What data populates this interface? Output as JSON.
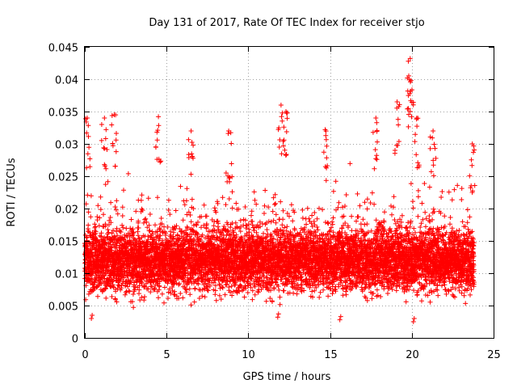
{
  "chart_data": {
    "type": "scatter",
    "title": "Day 131 of 2017, Rate Of TEC Index for receiver stjo",
    "xlabel": "GPS time / hours",
    "ylabel": "ROTI / TECUs",
    "xlim": [
      0,
      25
    ],
    "ylim": [
      0,
      0.045
    ],
    "xticks": [
      "0",
      "5",
      "10",
      "15",
      "20",
      "25"
    ],
    "yticks": [
      "0",
      "0.005",
      "0.01",
      "0.015",
      "0.02",
      "0.025",
      "0.03",
      "0.035",
      "0.04",
      "0.045"
    ],
    "grid": true,
    "marker": "+",
    "color": "#ff0000",
    "series": [
      {
        "name": "ROTI",
        "x_range": [
          0.0,
          23.8
        ],
        "sample_interval_hours": 0.025,
        "points_per_sample": 8,
        "typical_range": [
          0.005,
          0.022
        ],
        "notable_peaks": [
          {
            "x": 0.15,
            "y": 0.034
          },
          {
            "x": 1.2,
            "y": 0.034
          },
          {
            "x": 1.8,
            "y": 0.0345
          },
          {
            "x": 4.5,
            "y": 0.0342
          },
          {
            "x": 6.5,
            "y": 0.032
          },
          {
            "x": 8.8,
            "y": 0.032
          },
          {
            "x": 12.0,
            "y": 0.036
          },
          {
            "x": 12.3,
            "y": 0.035
          },
          {
            "x": 14.7,
            "y": 0.0322
          },
          {
            "x": 17.8,
            "y": 0.034
          },
          {
            "x": 19.1,
            "y": 0.0365
          },
          {
            "x": 19.9,
            "y": 0.0432
          },
          {
            "x": 19.95,
            "y": 0.0398
          },
          {
            "x": 20.3,
            "y": 0.034
          },
          {
            "x": 21.3,
            "y": 0.032
          },
          {
            "x": 23.7,
            "y": 0.03
          }
        ],
        "notable_lows": [
          {
            "x": 0.4,
            "y": 0.003
          },
          {
            "x": 11.8,
            "y": 0.0032
          },
          {
            "x": 15.6,
            "y": 0.0028
          },
          {
            "x": 20.1,
            "y": 0.0025
          }
        ]
      }
    ]
  }
}
